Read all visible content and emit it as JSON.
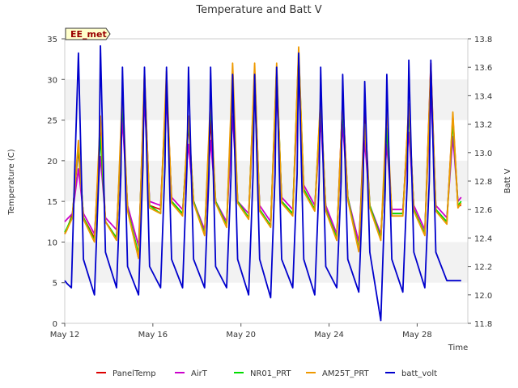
{
  "chart_data": {
    "type": "line",
    "title": "Temperature and Batt V",
    "xlabel": "Time",
    "ylabel": "Temperature (C)",
    "ylabel_right": "Batt V",
    "station_badge": "EE_met",
    "x_range_days": [
      0,
      18.3
    ],
    "x_ticks": [
      {
        "day": 0,
        "label": "May 12"
      },
      {
        "day": 4,
        "label": "May 16"
      },
      {
        "day": 8,
        "label": "May 20"
      },
      {
        "day": 12,
        "label": "May 24"
      },
      {
        "day": 16,
        "label": "May 28"
      }
    ],
    "ylim": [
      0,
      35
    ],
    "y_ticks": [
      0,
      5,
      10,
      15,
      20,
      25,
      30,
      35
    ],
    "ylim_right": [
      11.8,
      13.8
    ],
    "y_ticks_right": [
      11.8,
      12.0,
      12.2,
      12.4,
      12.6,
      12.8,
      13.0,
      13.2,
      13.4,
      13.6,
      13.8
    ],
    "grid_bands": true,
    "legend_position": "bottom",
    "series": [
      {
        "name": "PanelTemp",
        "axis": "left",
        "color": "#dd0000",
        "x": [
          0.0,
          0.1,
          0.35,
          0.62,
          0.85,
          1.35,
          1.62,
          1.85,
          2.35,
          2.62,
          2.85,
          3.35,
          3.62,
          3.85,
          4.35,
          4.62,
          4.85,
          5.35,
          5.62,
          5.85,
          6.35,
          6.62,
          6.85,
          7.35,
          7.62,
          7.85,
          8.35,
          8.62,
          8.85,
          9.35,
          9.62,
          9.85,
          10.35,
          10.62,
          10.85,
          11.35,
          11.62,
          11.85,
          12.35,
          12.62,
          12.85,
          13.35,
          13.62,
          13.85,
          14.35,
          14.62,
          14.85,
          15.35,
          15.62,
          15.85,
          16.35,
          16.62,
          16.85,
          17.35,
          17.62,
          17.85,
          18.0
        ],
        "y": [
          11.0,
          11.5,
          13.5,
          21.5,
          13.0,
          10.5,
          24.0,
          12.5,
          10.5,
          27.0,
          14.0,
          8.0,
          30.5,
          14.5,
          14.0,
          30.0,
          15.0,
          13.5,
          24.5,
          15.0,
          11.0,
          25.0,
          15.0,
          12.0,
          28.5,
          15.0,
          13.0,
          31.0,
          14.0,
          12.0,
          31.0,
          15.0,
          13.5,
          33.0,
          16.5,
          14.0,
          27.0,
          14.0,
          10.5,
          27.5,
          15.5,
          9.0,
          26.0,
          14.5,
          10.5,
          24.0,
          13.5,
          13.5,
          26.5,
          14.0,
          11.0,
          32.0,
          14.0,
          12.5,
          25.5,
          14.5,
          14.5
        ]
      },
      {
        "name": "AirT",
        "axis": "left",
        "color": "#cc00cc",
        "x": [
          0.0,
          0.1,
          0.35,
          0.62,
          0.85,
          1.35,
          1.62,
          1.85,
          2.35,
          2.62,
          2.85,
          3.35,
          3.62,
          3.85,
          4.35,
          4.62,
          4.85,
          5.35,
          5.62,
          5.85,
          6.35,
          6.62,
          6.85,
          7.35,
          7.62,
          7.85,
          8.35,
          8.62,
          8.85,
          9.35,
          9.62,
          9.85,
          10.35,
          10.62,
          10.85,
          11.35,
          11.62,
          11.85,
          12.35,
          12.62,
          12.85,
          13.35,
          13.62,
          13.85,
          14.35,
          14.62,
          14.85,
          15.35,
          15.62,
          15.85,
          16.35,
          16.62,
          16.85,
          17.35,
          17.62,
          17.85,
          18.0
        ],
        "y": [
          12.5,
          12.8,
          13.5,
          19.0,
          13.5,
          11.0,
          20.5,
          13.0,
          11.5,
          25.0,
          14.5,
          9.5,
          27.5,
          15.0,
          14.5,
          27.5,
          15.5,
          14.0,
          22.0,
          15.0,
          11.5,
          22.5,
          15.0,
          12.5,
          25.5,
          15.0,
          13.5,
          28.5,
          14.5,
          12.5,
          28.5,
          15.5,
          14.0,
          30.0,
          17.0,
          14.5,
          25.0,
          14.5,
          11.0,
          24.5,
          15.5,
          10.0,
          22.5,
          14.5,
          11.0,
          22.0,
          14.0,
          14.0,
          23.5,
          14.5,
          11.5,
          28.5,
          14.5,
          13.0,
          23.0,
          15.0,
          15.5
        ]
      },
      {
        "name": "NR01_PRT",
        "axis": "left",
        "color": "#00dd00",
        "x": [
          0.0,
          0.1,
          0.35,
          0.62,
          0.85,
          1.35,
          1.62,
          1.85,
          2.35,
          2.62,
          2.85,
          3.35,
          3.62,
          3.85,
          4.35,
          4.62,
          4.85,
          5.35,
          5.62,
          5.85,
          6.35,
          6.62,
          6.85,
          7.35,
          7.62,
          7.85,
          8.35,
          8.62,
          8.85,
          9.35,
          9.62,
          9.85,
          10.35,
          10.62,
          10.85,
          11.35,
          11.62,
          11.85,
          12.35,
          12.62,
          12.85,
          13.35,
          13.62,
          13.85,
          14.35,
          14.62,
          14.85,
          15.35,
          15.62,
          15.85,
          16.35,
          16.62,
          16.85,
          17.35,
          17.62,
          17.85,
          18.0
        ],
        "y": [
          11.2,
          11.7,
          13.2,
          22.0,
          13.0,
          10.2,
          23.0,
          12.5,
          10.5,
          27.5,
          14.0,
          8.5,
          29.5,
          14.5,
          13.5,
          29.5,
          15.0,
          13.5,
          25.0,
          15.0,
          11.0,
          27.0,
          15.0,
          12.0,
          30.5,
          15.0,
          13.0,
          31.0,
          14.0,
          12.0,
          31.5,
          15.0,
          13.5,
          33.5,
          16.5,
          14.0,
          27.5,
          14.0,
          10.5,
          26.5,
          15.5,
          9.0,
          24.5,
          14.5,
          10.5,
          24.0,
          13.5,
          13.5,
          26.0,
          14.0,
          11.0,
          31.0,
          14.0,
          12.5,
          25.0,
          14.5,
          15.0
        ]
      },
      {
        "name": "AM25T_PRT",
        "axis": "left",
        "color": "#ee9900",
        "x": [
          0.0,
          0.1,
          0.35,
          0.62,
          0.85,
          1.35,
          1.62,
          1.85,
          2.35,
          2.62,
          2.85,
          3.35,
          3.62,
          3.85,
          4.35,
          4.62,
          4.85,
          5.35,
          5.62,
          5.85,
          6.35,
          6.62,
          6.85,
          7.35,
          7.62,
          7.85,
          8.35,
          8.62,
          8.85,
          9.35,
          9.62,
          9.85,
          10.35,
          10.62,
          10.85,
          11.35,
          11.62,
          11.85,
          12.35,
          12.62,
          12.85,
          13.35,
          13.62,
          13.85,
          14.35,
          14.62,
          14.85,
          15.35,
          15.62,
          15.85,
          16.35,
          16.62,
          16.85,
          17.35,
          17.62,
          17.85,
          18.0
        ],
        "y": [
          11.0,
          11.5,
          13.0,
          22.5,
          12.8,
          10.0,
          25.5,
          12.5,
          10.2,
          29.0,
          13.8,
          8.0,
          31.0,
          14.2,
          13.5,
          31.0,
          14.8,
          13.2,
          25.5,
          14.8,
          10.8,
          28.0,
          14.8,
          11.8,
          32.0,
          14.8,
          12.8,
          32.0,
          13.8,
          11.8,
          32.0,
          14.8,
          13.2,
          34.0,
          16.2,
          13.8,
          28.0,
          13.8,
          10.2,
          27.5,
          15.2,
          8.8,
          24.5,
          14.2,
          10.2,
          26.5,
          13.2,
          13.2,
          27.0,
          13.8,
          10.8,
          31.5,
          13.8,
          12.2,
          26.0,
          14.2,
          14.8
        ]
      },
      {
        "name": "batt_volt",
        "axis": "right",
        "color": "#0000cc",
        "x": [
          0.0,
          0.1,
          0.3,
          0.45,
          0.62,
          0.85,
          1.35,
          1.55,
          1.62,
          1.85,
          2.35,
          2.55,
          2.62,
          2.85,
          3.35,
          3.55,
          3.62,
          3.85,
          4.35,
          4.55,
          4.62,
          4.85,
          5.35,
          5.55,
          5.62,
          5.85,
          6.35,
          6.55,
          6.62,
          6.85,
          7.35,
          7.55,
          7.62,
          7.85,
          8.35,
          8.55,
          8.62,
          8.85,
          9.35,
          9.55,
          9.62,
          9.85,
          10.35,
          10.55,
          10.62,
          10.85,
          11.35,
          11.55,
          11.62,
          11.85,
          12.35,
          12.55,
          12.62,
          12.85,
          13.35,
          13.55,
          13.62,
          13.85,
          14.35,
          14.55,
          14.62,
          14.85,
          15.35,
          15.55,
          15.62,
          15.85,
          16.35,
          16.55,
          16.62,
          16.85,
          17.35,
          17.55,
          17.62,
          17.85,
          18.0
        ],
        "y": [
          12.1,
          12.08,
          12.05,
          12.85,
          13.7,
          12.25,
          12.0,
          12.85,
          13.75,
          12.3,
          12.05,
          12.85,
          13.6,
          12.2,
          12.0,
          12.9,
          13.6,
          12.2,
          12.05,
          12.9,
          13.6,
          12.25,
          12.05,
          12.9,
          13.6,
          12.25,
          12.05,
          12.85,
          13.6,
          12.2,
          12.05,
          12.85,
          13.55,
          12.25,
          12.0,
          12.85,
          13.55,
          12.25,
          11.98,
          12.85,
          13.6,
          12.25,
          12.05,
          12.85,
          13.7,
          12.25,
          12.0,
          12.8,
          13.6,
          12.2,
          12.05,
          12.8,
          13.55,
          12.25,
          12.02,
          12.8,
          13.5,
          12.3,
          11.82,
          12.75,
          13.55,
          12.25,
          12.02,
          12.8,
          13.65,
          12.3,
          12.05,
          12.8,
          13.65,
          12.3,
          12.1,
          12.1,
          12.1,
          12.1,
          12.1
        ]
      }
    ]
  }
}
